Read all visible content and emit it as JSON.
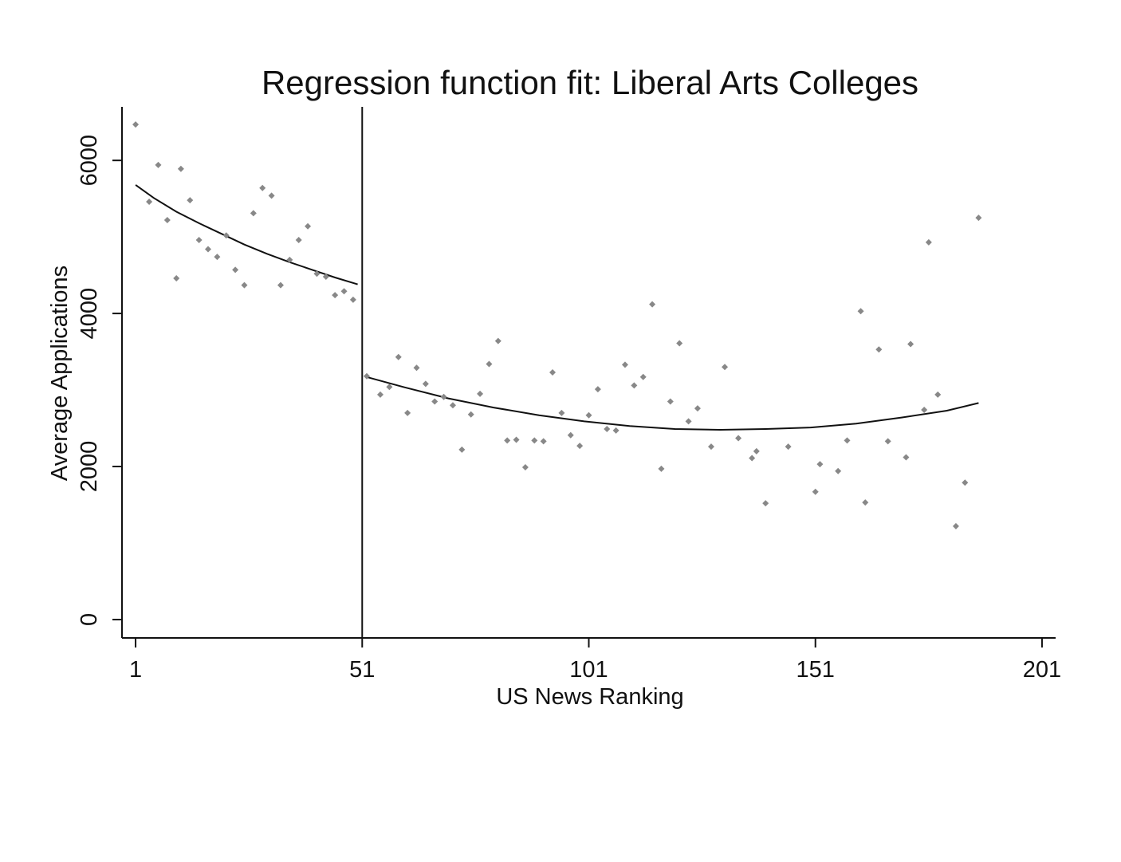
{
  "chart_data": {
    "type": "scatter",
    "title": "Regression function fit: Liberal Arts Colleges",
    "xlabel": "US News Ranking",
    "ylabel": "Average Applications",
    "xlim": [
      -2,
      204
    ],
    "ylim": [
      -240,
      6700
    ],
    "x_ticks": [
      1,
      51,
      101,
      151,
      201
    ],
    "x_tick_labels": [
      "1",
      "51",
      "101",
      "151",
      "201"
    ],
    "y_ticks": [
      0,
      2000,
      4000,
      6000
    ],
    "y_tick_labels": [
      "0",
      "2000",
      "4000",
      "6000"
    ],
    "grid": false,
    "legend": "none",
    "cutoff_x": 51,
    "colors": {
      "points": "#888888",
      "lines": "#111111",
      "axes": "#111111"
    },
    "series": [
      {
        "kind": "scatter",
        "points": [
          [
            1,
            6470
          ],
          [
            4,
            5460
          ],
          [
            6,
            5940
          ],
          [
            8,
            5220
          ],
          [
            10,
            4460
          ],
          [
            11,
            5890
          ],
          [
            13,
            5480
          ],
          [
            15,
            4960
          ],
          [
            17,
            4840
          ],
          [
            19,
            4740
          ],
          [
            21,
            5020
          ],
          [
            23,
            4570
          ],
          [
            25,
            4370
          ],
          [
            27,
            5310
          ],
          [
            29,
            5640
          ],
          [
            31,
            5540
          ],
          [
            33,
            4370
          ],
          [
            35,
            4700
          ],
          [
            37,
            4960
          ],
          [
            39,
            5140
          ],
          [
            41,
            4520
          ],
          [
            43,
            4480
          ],
          [
            45,
            4240
          ],
          [
            47,
            4290
          ],
          [
            49,
            4180
          ],
          [
            52,
            3180
          ],
          [
            55,
            2940
          ],
          [
            57,
            3040
          ],
          [
            59,
            3430
          ],
          [
            61,
            2700
          ],
          [
            63,
            3290
          ],
          [
            65,
            3080
          ],
          [
            67,
            2850
          ],
          [
            69,
            2910
          ],
          [
            71,
            2800
          ],
          [
            73,
            2220
          ],
          [
            75,
            2680
          ],
          [
            77,
            2950
          ],
          [
            79,
            3340
          ],
          [
            81,
            3640
          ],
          [
            83,
            2340
          ],
          [
            85,
            2350
          ],
          [
            87,
            1990
          ],
          [
            89,
            2340
          ],
          [
            91,
            2330
          ],
          [
            93,
            3230
          ],
          [
            95,
            2700
          ],
          [
            97,
            2410
          ],
          [
            99,
            2270
          ],
          [
            101,
            2670
          ],
          [
            103,
            3010
          ],
          [
            105,
            2490
          ],
          [
            107,
            2470
          ],
          [
            109,
            3330
          ],
          [
            111,
            3060
          ],
          [
            113,
            3170
          ],
          [
            115,
            4120
          ],
          [
            117,
            1970
          ],
          [
            119,
            2850
          ],
          [
            121,
            3610
          ],
          [
            123,
            2590
          ],
          [
            125,
            2760
          ],
          [
            128,
            2260
          ],
          [
            131,
            3300
          ],
          [
            134,
            2370
          ],
          [
            137,
            2110
          ],
          [
            138,
            2200
          ],
          [
            140,
            1520
          ],
          [
            145,
            2260
          ],
          [
            151,
            1670
          ],
          [
            152,
            2030
          ],
          [
            156,
            1940
          ],
          [
            158,
            2340
          ],
          [
            161,
            4030
          ],
          [
            162,
            1530
          ],
          [
            165,
            3530
          ],
          [
            167,
            2330
          ],
          [
            171,
            2120
          ],
          [
            172,
            3600
          ],
          [
            175,
            2740
          ],
          [
            176,
            4930
          ],
          [
            178,
            2940
          ],
          [
            182,
            1220
          ],
          [
            184,
            1790
          ],
          [
            187,
            5250
          ]
        ]
      },
      {
        "kind": "line",
        "points": [
          [
            1,
            5680
          ],
          [
            5,
            5510
          ],
          [
            10,
            5330
          ],
          [
            15,
            5180
          ],
          [
            20,
            5040
          ],
          [
            25,
            4900
          ],
          [
            30,
            4780
          ],
          [
            35,
            4670
          ],
          [
            40,
            4570
          ],
          [
            45,
            4470
          ],
          [
            50,
            4380
          ]
        ]
      },
      {
        "kind": "line",
        "points": [
          [
            52,
            3170
          ],
          [
            60,
            3040
          ],
          [
            70,
            2890
          ],
          [
            80,
            2770
          ],
          [
            90,
            2670
          ],
          [
            100,
            2590
          ],
          [
            110,
            2530
          ],
          [
            120,
            2490
          ],
          [
            130,
            2480
          ],
          [
            140,
            2490
          ],
          [
            150,
            2510
          ],
          [
            160,
            2560
          ],
          [
            170,
            2640
          ],
          [
            180,
            2730
          ],
          [
            187,
            2830
          ]
        ]
      }
    ]
  }
}
